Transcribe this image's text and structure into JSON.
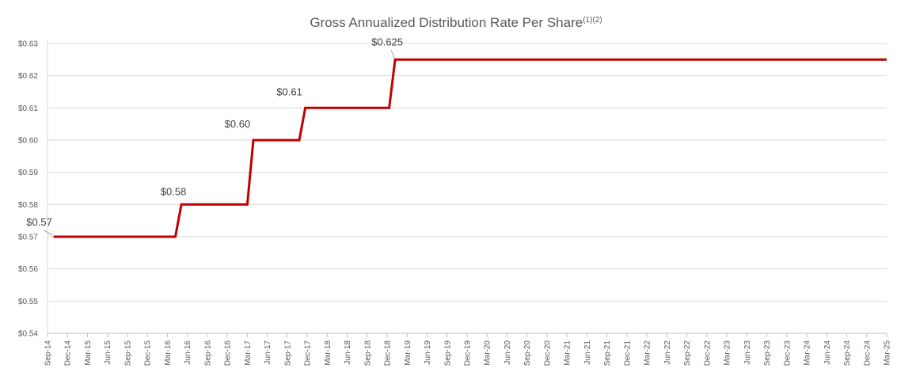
{
  "chart_data": {
    "type": "line",
    "title": "Gross Annualized Distribution Rate Per Share",
    "title_superscript": "(1)(2)",
    "xlabel": "",
    "ylabel": "",
    "ylim": [
      0.54,
      0.63
    ],
    "y_ticks": [
      "$0.54",
      "$0.55",
      "$0.56",
      "$0.57",
      "$0.58",
      "$0.59",
      "$0.60",
      "$0.61",
      "$0.62",
      "$0.63"
    ],
    "categories": [
      "Sep-14",
      "Dec-14",
      "Mar-15",
      "Jun-15",
      "Sep-15",
      "Dec-15",
      "Mar-16",
      "Jun-16",
      "Sep-16",
      "Dec-16",
      "Mar-17",
      "Jun-17",
      "Sep-17",
      "Dec-17",
      "Mar-18",
      "Jun-18",
      "Sep-18",
      "Dec-18",
      "Mar-19",
      "Jun-19",
      "Sep-19",
      "Dec-19",
      "Mar-20",
      "Jun-20",
      "Sep-20",
      "Dec-20",
      "Mar-21",
      "Jun-21",
      "Sep-21",
      "Dec-21",
      "Mar-22",
      "Jun-22",
      "Sep-22",
      "Dec-22",
      "Mar-23",
      "Jun-23",
      "Sep-23",
      "Dec-23",
      "Mar-24",
      "Jun-24",
      "Sep-24",
      "Dec-24",
      "Mar-25"
    ],
    "series": [
      {
        "name": "Gross Annualized Distribution Rate Per Share",
        "color": "#C00000",
        "points": [
          {
            "x": 0.3,
            "y": 0.57
          },
          {
            "x": 6.4,
            "y": 0.57
          },
          {
            "x": 6.7,
            "y": 0.58
          },
          {
            "x": 10.0,
            "y": 0.58
          },
          {
            "x": 10.3,
            "y": 0.6
          },
          {
            "x": 12.6,
            "y": 0.6
          },
          {
            "x": 12.9,
            "y": 0.61
          },
          {
            "x": 17.1,
            "y": 0.61
          },
          {
            "x": 17.4,
            "y": 0.625
          },
          {
            "x": 42.0,
            "y": 0.625
          }
        ]
      }
    ],
    "data_labels": [
      {
        "text": "$0.57",
        "x": 0.3,
        "y": 0.57
      },
      {
        "text": "$0.58",
        "x": 6.7,
        "y": 0.58
      },
      {
        "text": "$0.60",
        "x": 10.3,
        "y": 0.6
      },
      {
        "text": "$0.61",
        "x": 12.9,
        "y": 0.61
      },
      {
        "text": "$0.625",
        "x": 17.4,
        "y": 0.625
      }
    ],
    "grid": true,
    "legend": "none"
  }
}
